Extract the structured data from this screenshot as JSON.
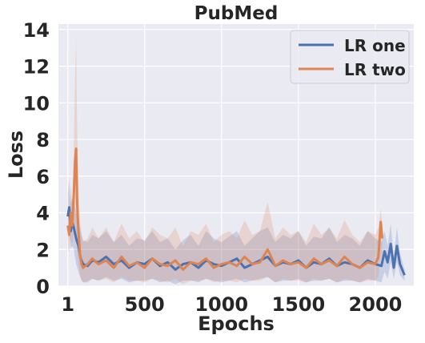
{
  "chart_data": {
    "type": "line",
    "title": "PubMed",
    "xlabel": "Epochs",
    "ylabel": "Loss",
    "xlim": [
      -60,
      2250
    ],
    "ylim": [
      0,
      14.3
    ],
    "x_ticks": [
      1,
      500,
      1000,
      1500,
      2000
    ],
    "x_tick_labels": [
      "1",
      "500",
      "1000",
      "1500",
      "2000"
    ],
    "y_ticks": [
      0,
      2,
      4,
      6,
      8,
      10,
      12,
      14
    ],
    "y_tick_labels": [
      "0",
      "2",
      "4",
      "6",
      "8",
      "10",
      "12",
      "14"
    ],
    "grid": true,
    "legend": {
      "position": "top-right",
      "entries": [
        "LR one",
        "LR two"
      ]
    },
    "background_color": "#eaeaf2",
    "series": [
      {
        "name": "LR one",
        "color": "#4c72b0",
        "x": [
          1,
          10,
          20,
          30,
          40,
          55,
          70,
          85,
          100,
          130,
          160,
          200,
          250,
          300,
          350,
          400,
          450,
          500,
          550,
          600,
          650,
          700,
          750,
          800,
          850,
          900,
          950,
          1000,
          1050,
          1100,
          1150,
          1200,
          1250,
          1300,
          1350,
          1400,
          1450,
          1500,
          1550,
          1600,
          1650,
          1700,
          1750,
          1800,
          1850,
          1900,
          1950,
          2000,
          2040,
          2060,
          2080,
          2100,
          2120,
          2140,
          2160,
          2180,
          2190
        ],
        "values": [
          3.8,
          4.3,
          3.0,
          3.5,
          3.2,
          2.6,
          2.2,
          1.5,
          1.2,
          1.1,
          1.4,
          1.3,
          1.6,
          1.2,
          1.4,
          1.0,
          1.3,
          1.2,
          1.5,
          1.1,
          1.3,
          0.9,
          1.2,
          1.3,
          1.0,
          1.4,
          1.2,
          1.1,
          1.3,
          1.5,
          1.0,
          1.2,
          1.4,
          1.6,
          1.1,
          1.3,
          1.2,
          1.4,
          1.0,
          1.3,
          1.2,
          1.5,
          1.1,
          1.3,
          1.2,
          1.0,
          1.4,
          1.2,
          1.1,
          1.9,
          1.3,
          2.3,
          1.0,
          2.2,
          1.2,
          0.8,
          0.6
        ],
        "band_lower": [
          2.5,
          3.0,
          2.0,
          2.2,
          2.0,
          1.2,
          0.8,
          0.4,
          0.2,
          0.2,
          0.4,
          0.3,
          0.5,
          0.3,
          0.4,
          0.2,
          0.3,
          0.3,
          0.4,
          0.2,
          0.3,
          0.1,
          0.3,
          0.3,
          0.2,
          0.4,
          0.3,
          0.2,
          0.3,
          0.4,
          0.2,
          0.3,
          0.4,
          0.5,
          0.2,
          0.3,
          0.3,
          0.4,
          0.2,
          0.3,
          0.3,
          0.4,
          0.2,
          0.3,
          0.3,
          0.2,
          0.4,
          0.3,
          0.2,
          0.8,
          0.4,
          1.3,
          0.4,
          1.3,
          0.6,
          0.4,
          0.3
        ],
        "band_upper": [
          5.0,
          5.8,
          4.5,
          4.8,
          4.6,
          4.0,
          3.6,
          3.0,
          2.5,
          2.4,
          2.8,
          2.6,
          3.0,
          2.4,
          2.8,
          2.2,
          2.6,
          2.5,
          3.0,
          2.4,
          2.6,
          2.0,
          2.5,
          2.8,
          2.2,
          3.0,
          2.6,
          2.4,
          2.7,
          3.0,
          2.2,
          2.6,
          3.0,
          3.2,
          2.4,
          2.8,
          2.6,
          3.0,
          2.2,
          2.7,
          2.6,
          3.2,
          2.4,
          2.8,
          2.6,
          2.2,
          3.0,
          2.6,
          2.4,
          3.0,
          2.2,
          3.4,
          1.6,
          3.2,
          1.8,
          1.2,
          0.9
        ]
      },
      {
        "name": "LR two",
        "color": "#dd8452",
        "x": [
          1,
          10,
          20,
          30,
          40,
          48,
          55,
          62,
          70,
          80,
          90,
          100,
          130,
          160,
          200,
          250,
          300,
          350,
          400,
          450,
          500,
          550,
          600,
          650,
          700,
          750,
          800,
          850,
          900,
          950,
          1000,
          1050,
          1100,
          1150,
          1200,
          1250,
          1300,
          1350,
          1400,
          1450,
          1500,
          1550,
          1600,
          1650,
          1700,
          1750,
          1800,
          1850,
          1900,
          1950,
          2000,
          2020,
          2035,
          2045
        ],
        "values": [
          3.3,
          2.8,
          4.0,
          3.3,
          5.0,
          6.8,
          7.5,
          4.5,
          3.0,
          1.8,
          1.2,
          1.0,
          1.2,
          1.5,
          1.2,
          1.4,
          1.0,
          1.6,
          1.1,
          1.3,
          1.0,
          1.5,
          1.2,
          1.1,
          1.4,
          0.9,
          1.3,
          1.2,
          1.5,
          1.0,
          1.2,
          1.3,
          1.1,
          1.6,
          1.2,
          1.3,
          2.0,
          1.1,
          1.4,
          1.2,
          1.3,
          1.0,
          1.5,
          1.2,
          1.4,
          1.1,
          1.6,
          1.2,
          1.0,
          1.3,
          1.2,
          1.6,
          3.5,
          2.6
        ],
        "band_lower": [
          2.2,
          1.8,
          2.6,
          2.2,
          3.2,
          3.5,
          3.0,
          1.8,
          1.2,
          0.6,
          0.3,
          0.2,
          0.3,
          0.4,
          0.3,
          0.4,
          0.2,
          0.5,
          0.3,
          0.3,
          0.2,
          0.4,
          0.3,
          0.2,
          0.4,
          0.1,
          0.3,
          0.3,
          0.4,
          0.2,
          0.3,
          0.3,
          0.2,
          0.4,
          0.3,
          0.3,
          0.5,
          0.2,
          0.4,
          0.3,
          0.3,
          0.2,
          0.4,
          0.3,
          0.4,
          0.2,
          0.4,
          0.3,
          0.2,
          0.3,
          0.3,
          0.5,
          1.8,
          1.4
        ],
        "band_upper": [
          4.4,
          4.0,
          5.5,
          4.6,
          7.5,
          11.5,
          13.5,
          8.5,
          5.5,
          3.6,
          2.8,
          2.4,
          2.6,
          3.2,
          2.6,
          3.2,
          2.4,
          3.4,
          2.6,
          3.0,
          2.4,
          3.2,
          2.8,
          2.6,
          3.2,
          2.2,
          3.0,
          2.8,
          3.4,
          2.4,
          2.8,
          3.0,
          2.6,
          3.6,
          2.8,
          3.0,
          4.6,
          2.6,
          3.2,
          2.8,
          3.0,
          2.4,
          3.4,
          2.8,
          3.2,
          2.6,
          3.6,
          2.8,
          2.4,
          3.0,
          2.8,
          3.2,
          4.2,
          3.4
        ]
      }
    ]
  }
}
